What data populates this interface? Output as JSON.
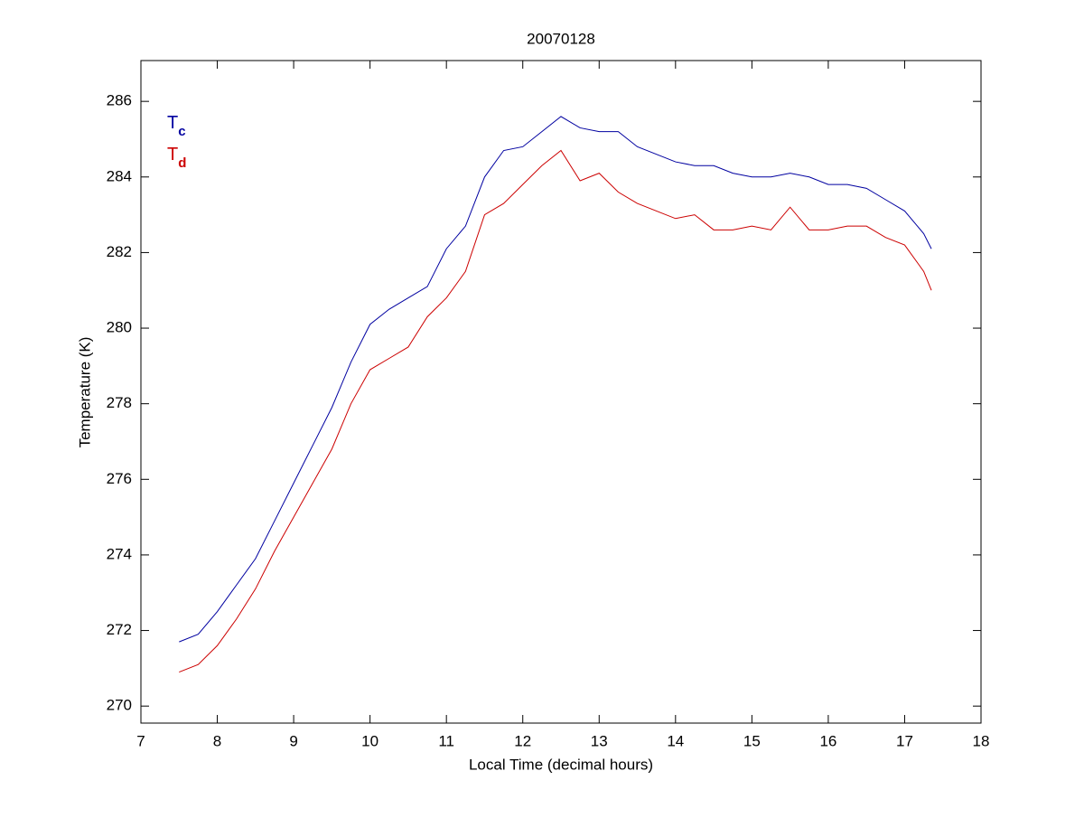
{
  "chart_data": {
    "type": "line",
    "title": "20070128",
    "x_label": "Local Time (decimal hours)",
    "y_label": "Temperature (K)",
    "x": [
      7.5,
      7.75,
      8.0,
      8.25,
      8.5,
      8.75,
      9.0,
      9.25,
      9.5,
      9.75,
      10.0,
      10.25,
      10.5,
      10.75,
      11.0,
      11.25,
      11.5,
      11.75,
      12.0,
      12.25,
      12.5,
      12.75,
      13.0,
      13.25,
      13.5,
      13.75,
      14.0,
      14.25,
      14.5,
      14.75,
      15.0,
      15.25,
      15.5,
      15.75,
      16.0,
      16.25,
      16.5,
      16.75,
      17.0,
      17.25,
      17.35
    ],
    "series": [
      {
        "name": "Tc",
        "color": "#0000a0",
        "values": [
          271.7,
          271.9,
          272.5,
          273.2,
          273.9,
          274.9,
          275.9,
          276.9,
          277.9,
          279.1,
          280.1,
          280.5,
          280.8,
          281.1,
          282.1,
          282.7,
          284.0,
          284.7,
          284.8,
          285.2,
          285.6,
          285.3,
          285.2,
          285.2,
          284.8,
          284.6,
          284.4,
          284.3,
          284.3,
          284.1,
          284.0,
          284.0,
          284.1,
          284.0,
          283.8,
          283.8,
          283.7,
          283.4,
          283.1,
          282.5,
          282.1
        ]
      },
      {
        "name": "Td",
        "color": "#cc0000",
        "values": [
          270.9,
          271.1,
          271.6,
          272.3,
          273.1,
          274.1,
          275.0,
          275.9,
          276.8,
          278.0,
          278.9,
          279.2,
          279.5,
          280.3,
          280.8,
          281.5,
          283.0,
          283.3,
          283.8,
          284.3,
          284.7,
          283.9,
          284.1,
          283.6,
          283.3,
          283.1,
          282.9,
          283.0,
          282.6,
          282.6,
          282.7,
          282.6,
          283.2,
          282.6,
          282.6,
          282.7,
          282.7,
          282.4,
          282.2,
          281.5,
          281.0
        ]
      }
    ],
    "xlim": [
      7,
      18
    ],
    "xticks": [
      7,
      8,
      9,
      10,
      11,
      12,
      13,
      14,
      15,
      16,
      17,
      18
    ],
    "ylim": [
      269.55,
      287.08
    ],
    "yticks": [
      270,
      272,
      274,
      276,
      278,
      280,
      282,
      284,
      286
    ],
    "grid": false
  }
}
